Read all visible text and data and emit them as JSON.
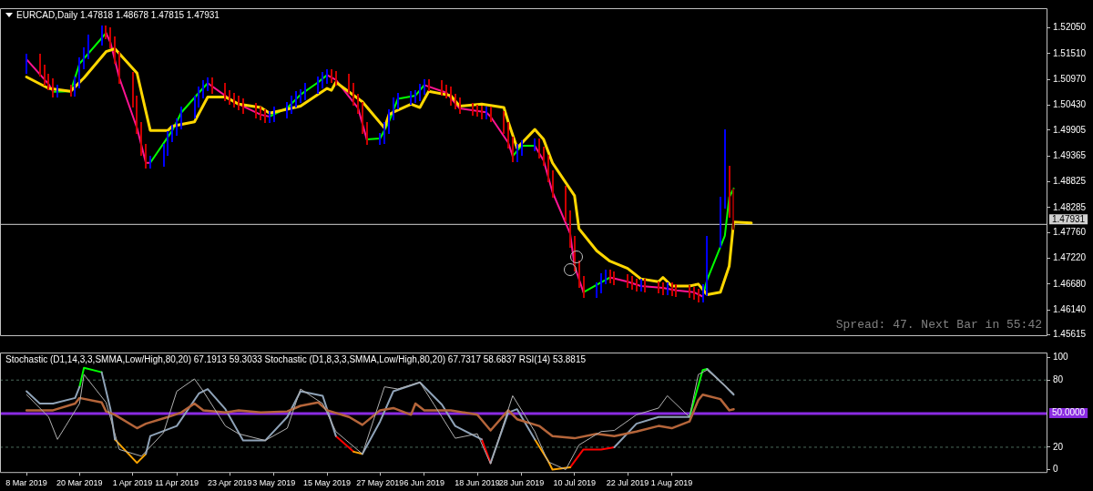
{
  "chart_data": [
    {
      "type": "candlestick",
      "title": "EURCAD,Daily 1.47818 1.48678 1.47815 1.47931",
      "annotations": [
        "Spread: 47. Next Bar in 55:42"
      ],
      "xlim": [
        "2019-03-02",
        "2019-10-25"
      ],
      "ylim": [
        1.4559,
        1.5246
      ],
      "yticks": [
        {
          "value": 1.5205,
          "label": "1.52050"
        },
        {
          "value": 1.5151,
          "label": "1.51510"
        },
        {
          "value": 1.5097,
          "label": "1.50970"
        },
        {
          "value": 1.5043,
          "label": "1.50430"
        },
        {
          "value": 1.49905,
          "label": "1.49905"
        },
        {
          "value": 1.49365,
          "label": "1.49365"
        },
        {
          "value": 1.48825,
          "label": "1.48825"
        },
        {
          "value": 1.48285,
          "label": "1.48285"
        },
        {
          "value": 1.4776,
          "label": "1.47760"
        },
        {
          "value": 1.4722,
          "label": "1.47220"
        },
        {
          "value": 1.4668,
          "label": "1.46680"
        },
        {
          "value": 1.4614,
          "label": "1.46140"
        },
        {
          "value": 1.45615,
          "label": "1.45615"
        }
      ],
      "tick_labels": "y",
      "ref_lines": [
        {
          "axis": "y",
          "value": 1.47931,
          "label": "1.47931",
          "color": "#d0d0d0"
        }
      ],
      "series": [
        {
          "type": "line",
          "color": "#ffd700",
          "x": [
            "2019-03-08",
            "2019-03-13",
            "2019-03-18",
            "2019-03-21",
            "2019-03-26",
            "2019-03-28",
            "2019-04-02",
            "2019-04-05",
            "2019-04-09",
            "2019-04-10",
            "2019-04-15",
            "2019-04-18",
            "2019-04-22",
            "2019-04-25",
            "2019-04-30",
            "2019-05-02",
            "2019-05-09",
            "2019-05-15",
            "2019-05-16",
            "2019-05-17",
            "2019-05-23",
            "2019-05-28",
            "2019-05-29",
            "2019-05-30",
            "2019-06-03",
            "2019-06-05",
            "2019-06-07",
            "2019-06-12",
            "2019-06-14",
            "2019-06-19",
            "2019-06-24",
            "2019-06-25",
            "2019-06-27",
            "2019-07-01",
            "2019-07-03",
            "2019-07-05",
            "2019-07-10",
            "2019-07-11",
            "2019-07-15",
            "2019-07-18",
            "2019-07-22",
            "2019-07-25",
            "2019-07-29",
            "2019-07-30",
            "2019-08-01",
            "2019-08-05",
            "2019-08-07",
            "2019-08-09",
            "2019-08-12",
            "2019-08-14",
            "2019-08-15",
            "2019-08-19"
          ],
          "values": [
            1.5102,
            1.5078,
            1.5072,
            1.51,
            1.5155,
            1.5161,
            1.511,
            1.499,
            1.499,
            1.4999,
            1.5008,
            1.506,
            1.506,
            1.5045,
            1.5038,
            1.5026,
            1.5041,
            1.5078,
            1.5074,
            1.5091,
            1.505,
            1.4995,
            1.5023,
            1.5028,
            1.5045,
            1.5038,
            1.5072,
            1.5063,
            1.5041,
            1.5045,
            1.5038,
            1.5008,
            1.4953,
            1.4992,
            1.4971,
            1.4922,
            1.4853,
            1.4784,
            1.4738,
            1.4716,
            1.4701,
            1.4679,
            1.4673,
            1.4682,
            1.4664,
            1.4664,
            1.4668,
            1.4646,
            1.4651,
            1.4706,
            1.4798,
            1.4796
          ]
        },
        {
          "type": "line",
          "color": "#ff1493",
          "x": [
            "2019-03-08",
            "2019-03-13",
            "2019-03-14",
            "2019-03-20",
            "2019-03-26",
            "2019-03-27",
            "2019-03-29",
            "2019-04-02",
            "2019-04-04",
            "2019-04-05",
            "2019-04-12",
            "2019-04-18",
            "2019-04-23",
            "2019-04-25",
            "2019-04-30",
            "2019-05-02",
            "2019-05-09",
            "2019-05-15",
            "2019-05-17",
            "2019-05-22",
            "2019-05-24",
            "2019-05-29",
            "2019-06-06",
            "2019-06-11",
            "2019-06-14",
            "2019-06-20",
            "2019-06-21",
            "2019-06-25",
            "2019-06-26",
            "2019-06-28",
            "2019-07-01",
            "2019-07-03",
            "2019-07-05",
            "2019-07-09",
            "2019-07-10",
            "2019-07-12",
            "2019-07-15",
            "2019-07-18",
            "2019-07-22",
            "2019-07-25",
            "2019-07-30",
            "2019-08-02",
            "2019-08-06",
            "2019-08-08"
          ],
          "values": [
            1.5139,
            1.5087,
            1.5071,
            null,
            1.5194,
            1.5174,
            1.51,
            1.4995,
            1.4922,
            1.4922,
            null,
            1.5089,
            1.5056,
            1.5045,
            1.5023,
            1.5019,
            null,
            1.5106,
            1.5096,
            1.5037,
            1.4971,
            null,
            1.5085,
            1.5069,
            1.5036,
            1.5028,
            1.5019,
            1.4964,
            1.4936,
            null,
            1.4958,
            1.4927,
            1.4861,
            1.4774,
            1.4706,
            1.4651,
            null,
            1.4682,
            1.4673,
            1.4664,
            1.466,
            1.4655,
            1.4651,
            1.4642
          ]
        },
        {
          "type": "line",
          "color": "#00ff00",
          "x": [
            "2019-03-14",
            "2019-03-18",
            "2019-03-20",
            "2019-03-26",
            "2019-04-01",
            "2019-04-05",
            "2019-04-10",
            "2019-04-12",
            "2019-04-16",
            "2019-04-18",
            "2019-04-25",
            "2019-05-02",
            "2019-05-06",
            "2019-05-09",
            "2019-05-13",
            "2019-05-15",
            "2019-05-20",
            "2019-05-24",
            "2019-05-27",
            "2019-05-29",
            "2019-05-31",
            "2019-06-04",
            "2019-06-06",
            "2019-06-18",
            "2019-06-26",
            "2019-06-28",
            "2019-07-01",
            "2019-07-08",
            "2019-07-12",
            "2019-07-18",
            "2019-07-30",
            "2019-08-08",
            "2019-08-09",
            "2019-08-13",
            "2019-08-14",
            "2019-08-15"
          ],
          "values": [
            1.5071,
            1.5072,
            1.513,
            1.5194,
            null,
            1.4922,
            1.499,
            1.5027,
            1.5069,
            1.5089,
            null,
            1.5019,
            1.5037,
            1.5065,
            1.5091,
            1.5106,
            null,
            1.4971,
            1.4973,
            1.5008,
            1.5056,
            1.5063,
            1.5085,
            null,
            1.4936,
            1.4958,
            1.4958,
            null,
            1.4651,
            1.4682,
            null,
            1.4642,
            1.4677,
            1.4769,
            1.485,
            1.4868
          ]
        },
        {
          "x": [
            "2019-03-08",
            "2019-03-11",
            "2019-03-12",
            "2019-03-13",
            "2019-03-14",
            "2019-03-15",
            "2019-03-18",
            "2019-03-19",
            "2019-03-20",
            "2019-03-21",
            "2019-03-22",
            "2019-03-25",
            "2019-03-26",
            "2019-03-27",
            "2019-03-28",
            "2019-03-29",
            "2019-04-01",
            "2019-04-02",
            "2019-04-03",
            "2019-04-04",
            "2019-04-05",
            "2019-04-08",
            "2019-04-09",
            "2019-04-10",
            "2019-04-11",
            "2019-04-12",
            "2019-04-15",
            "2019-04-16",
            "2019-04-17",
            "2019-04-18",
            "2019-04-19",
            "2019-04-22",
            "2019-04-23",
            "2019-04-24",
            "2019-04-25",
            "2019-04-26",
            "2019-04-29",
            "2019-04-30",
            "2019-05-01",
            "2019-05-02",
            "2019-05-03",
            "2019-05-06",
            "2019-05-07",
            "2019-05-08",
            "2019-05-09",
            "2019-05-10",
            "2019-05-13",
            "2019-05-14",
            "2019-05-15",
            "2019-05-16",
            "2019-05-17",
            "2019-05-20",
            "2019-05-21",
            "2019-05-22",
            "2019-05-23",
            "2019-05-24",
            "2019-05-27",
            "2019-05-28",
            "2019-05-29",
            "2019-05-30",
            "2019-05-31",
            "2019-06-03",
            "2019-06-04",
            "2019-06-05",
            "2019-06-06",
            "2019-06-07",
            "2019-06-10",
            "2019-06-11",
            "2019-06-12",
            "2019-06-13",
            "2019-06-14",
            "2019-06-17",
            "2019-06-18",
            "2019-06-19",
            "2019-06-20",
            "2019-06-21",
            "2019-06-24",
            "2019-06-25",
            "2019-06-26",
            "2019-06-27",
            "2019-06-28",
            "2019-07-01",
            "2019-07-02",
            "2019-07-03",
            "2019-07-04",
            "2019-07-05",
            "2019-07-08",
            "2019-07-09",
            "2019-07-10",
            "2019-07-11",
            "2019-07-12",
            "2019-07-15",
            "2019-07-16",
            "2019-07-17",
            "2019-07-18",
            "2019-07-19",
            "2019-07-22",
            "2019-07-23",
            "2019-07-24",
            "2019-07-25",
            "2019-07-26",
            "2019-07-29",
            "2019-07-30",
            "2019-07-31",
            "2019-08-01",
            "2019-08-02",
            "2019-08-05",
            "2019-08-06",
            "2019-08-07",
            "2019-08-08",
            "2019-08-09",
            "2019-08-12",
            "2019-08-13",
            "2019-08-14",
            "2019-08-15"
          ],
          "ohlc": [
            [
              1.512,
              1.5151,
              1.5108,
              1.5139
            ],
            [
              1.5139,
              1.5151,
              1.5103,
              1.5115
            ],
            [
              1.5115,
              1.5127,
              1.5084,
              1.5096
            ],
            [
              1.5096,
              1.5108,
              1.5075,
              1.5087
            ],
            [
              1.5087,
              1.5099,
              1.5059,
              1.5071
            ],
            [
              1.5071,
              1.5086,
              1.5059,
              1.5074
            ],
            [
              1.5074,
              1.5086,
              1.506,
              1.5072
            ],
            [
              1.5072,
              1.5103,
              1.506,
              1.5091
            ],
            [
              1.5091,
              1.5142,
              1.5079,
              1.513
            ],
            [
              1.513,
              1.5164,
              1.5118,
              1.5152
            ],
            [
              1.5152,
              1.5191,
              1.514,
              1.5179
            ],
            [
              1.5179,
              1.521,
              1.5167,
              1.5198
            ],
            [
              1.5198,
              1.521,
              1.5182,
              1.5194
            ],
            [
              1.5194,
              1.5206,
              1.5162,
              1.5174
            ],
            [
              1.5174,
              1.5186,
              1.513,
              1.5142
            ],
            [
              1.5142,
              1.5154,
              1.5088,
              1.51
            ],
            [
              1.51,
              1.5112,
              1.5038,
              1.505
            ],
            [
              1.505,
              1.5062,
              1.4983,
              1.4995
            ],
            [
              1.4995,
              1.5007,
              1.4937,
              1.4949
            ],
            [
              1.4949,
              1.4961,
              1.491,
              1.4922
            ],
            [
              1.4922,
              1.4937,
              1.491,
              1.4925
            ],
            [
              1.4925,
              1.4961,
              1.4913,
              1.4949
            ],
            [
              1.4949,
              1.4989,
              1.4937,
              1.4977
            ],
            [
              1.4977,
              1.5002,
              1.4965,
              1.499
            ],
            [
              1.499,
              1.5016,
              1.4978,
              1.5004
            ],
            [
              1.5004,
              1.5039,
              1.4992,
              1.5027
            ],
            [
              1.5027,
              1.5062,
              1.5015,
              1.505
            ],
            [
              1.505,
              1.5081,
              1.5038,
              1.5069
            ],
            [
              1.5069,
              1.5096,
              1.5057,
              1.5084
            ],
            [
              1.5084,
              1.5101,
              1.5072,
              1.5089
            ],
            [
              1.5089,
              1.5101,
              1.5066,
              1.5078
            ],
            [
              1.5078,
              1.509,
              1.5051,
              1.5063
            ],
            [
              1.5063,
              1.5075,
              1.5044,
              1.5056
            ],
            [
              1.5056,
              1.5068,
              1.5038,
              1.505
            ],
            [
              1.505,
              1.5062,
              1.5033,
              1.5045
            ],
            [
              1.5045,
              1.5057,
              1.5024,
              1.5036
            ],
            [
              1.5036,
              1.5048,
              1.5016,
              1.5028
            ],
            [
              1.5028,
              1.504,
              1.5011,
              1.5023
            ],
            [
              1.5023,
              1.5035,
              1.5005,
              1.5017
            ],
            [
              1.5017,
              1.5031,
              1.5005,
              1.5019
            ],
            [
              1.5019,
              1.504,
              1.5007,
              1.5028
            ],
            [
              1.5028,
              1.5049,
              1.5016,
              1.5037
            ],
            [
              1.5037,
              1.5062,
              1.5025,
              1.505
            ],
            [
              1.505,
              1.5072,
              1.5038,
              1.506
            ],
            [
              1.506,
              1.5077,
              1.5048,
              1.5065
            ],
            [
              1.5065,
              1.509,
              1.5053,
              1.5078
            ],
            [
              1.5078,
              1.5103,
              1.5066,
              1.5091
            ],
            [
              1.5091,
              1.5112,
              1.5079,
              1.51
            ],
            [
              1.51,
              1.5118,
              1.5088,
              1.5106
            ],
            [
              1.5106,
              1.5118,
              1.509,
              1.5102
            ],
            [
              1.5102,
              1.5114,
              1.5084,
              1.5096
            ],
            [
              1.5096,
              1.5108,
              1.5066,
              1.5078
            ],
            [
              1.5078,
              1.509,
              1.5042,
              1.5054
            ],
            [
              1.5054,
              1.5066,
              1.5025,
              1.5037
            ],
            [
              1.5037,
              1.5049,
              1.4983,
              1.4995
            ],
            [
              1.4995,
              1.5007,
              1.4959,
              1.4971
            ],
            [
              1.4971,
              1.4985,
              1.4959,
              1.4973
            ],
            [
              1.4973,
              1.5007,
              1.4961,
              1.4995
            ],
            [
              1.4995,
              1.5035,
              1.4983,
              1.5023
            ],
            [
              1.5023,
              1.5059,
              1.5011,
              1.5047
            ],
            [
              1.5047,
              1.5068,
              1.5035,
              1.5056
            ],
            [
              1.5056,
              1.5072,
              1.5044,
              1.506
            ],
            [
              1.506,
              1.5075,
              1.5048,
              1.5063
            ],
            [
              1.5063,
              1.5088,
              1.5051,
              1.5076
            ],
            [
              1.5076,
              1.5097,
              1.5064,
              1.5085
            ],
            [
              1.5085,
              1.5097,
              1.5072,
              1.5084
            ],
            [
              1.5084,
              1.5096,
              1.5062,
              1.5074
            ],
            [
              1.5074,
              1.5086,
              1.5057,
              1.5069
            ],
            [
              1.5069,
              1.5081,
              1.5042,
              1.5054
            ],
            [
              1.5054,
              1.5066,
              1.5035,
              1.5047
            ],
            [
              1.5047,
              1.5059,
              1.5024,
              1.5036
            ],
            [
              1.5036,
              1.5048,
              1.502,
              1.5032
            ],
            [
              1.5032,
              1.5044,
              1.5018,
              1.503
            ],
            [
              1.503,
              1.5042,
              1.5014,
              1.5026
            ],
            [
              1.5026,
              1.504,
              1.5014,
              1.5028
            ],
            [
              1.5028,
              1.504,
              1.5007,
              1.5019
            ],
            [
              1.5019,
              1.5031,
              1.4983,
              1.4995
            ],
            [
              1.4995,
              1.5007,
              1.4952,
              1.4964
            ],
            [
              1.4964,
              1.4976,
              1.4924,
              1.4936
            ],
            [
              1.4936,
              1.4961,
              1.4924,
              1.4949
            ],
            [
              1.4949,
              1.497,
              1.4937,
              1.4958
            ],
            [
              1.4958,
              1.4974,
              1.4946,
              1.4962
            ],
            [
              1.4962,
              1.4974,
              1.4932,
              1.4944
            ],
            [
              1.4944,
              1.4956,
              1.4915,
              1.4927
            ],
            [
              1.4927,
              1.4939,
              1.4882,
              1.4894
            ],
            [
              1.4894,
              1.4906,
              1.4849,
              1.4861
            ],
            [
              1.4861,
              1.4873,
              1.4799,
              1.4811
            ],
            [
              1.4811,
              1.4823,
              1.4744,
              1.4756
            ],
            [
              1.4756,
              1.4768,
              1.4694,
              1.4706
            ],
            [
              1.4706,
              1.4718,
              1.4661,
              1.4673
            ],
            [
              1.4673,
              1.4685,
              1.4639,
              1.4651
            ],
            [
              1.4651,
              1.4672,
              1.4639,
              1.466
            ],
            [
              1.466,
              1.4691,
              1.4648,
              1.4679
            ],
            [
              1.4679,
              1.4698,
              1.4667,
              1.4686
            ],
            [
              1.4686,
              1.4698,
              1.467,
              1.4682
            ],
            [
              1.4682,
              1.4694,
              1.4665,
              1.4677
            ],
            [
              1.4677,
              1.4689,
              1.4661,
              1.4673
            ],
            [
              1.4673,
              1.4685,
              1.4656,
              1.4668
            ],
            [
              1.4668,
              1.468,
              1.4652,
              1.4664
            ],
            [
              1.4664,
              1.4679,
              1.4652,
              1.4667
            ],
            [
              1.4667,
              1.4679,
              1.465,
              1.4662
            ],
            [
              1.4662,
              1.4674,
              1.4648,
              1.466
            ],
            [
              1.466,
              1.4672,
              1.4645,
              1.4657
            ],
            [
              1.4657,
              1.4671,
              1.4645,
              1.4659
            ],
            [
              1.4659,
              1.4671,
              1.4643,
              1.4655
            ],
            [
              1.4655,
              1.4667,
              1.4641,
              1.4653
            ],
            [
              1.4653,
              1.4665,
              1.4639,
              1.4651
            ],
            [
              1.4651,
              1.4663,
              1.4635,
              1.4647
            ],
            [
              1.4647,
              1.4659,
              1.463,
              1.4642
            ],
            [
              1.4642,
              1.4667,
              1.463,
              1.4655
            ],
            [
              1.4655,
              1.4768,
              1.4643,
              1.4756
            ],
            [
              1.4756,
              1.4851,
              1.4744,
              1.4839
            ],
            [
              1.4839,
              1.4992,
              1.4827,
              1.4903
            ],
            [
              1.4903,
              1.4915,
              1.4808,
              1.482
            ],
            [
              1.47818,
              1.48678,
              1.47815,
              1.47931
            ]
          ],
          "colors": [
            "#0000ff",
            "#cc0000",
            "#cc0000",
            "#cc0000",
            "#cc0000",
            "#0000ff",
            "#cc0000",
            "#0000ff",
            "#0000ff",
            "#0000ff",
            "#0000ff",
            "#0000ff",
            "#cc0000",
            "#cc0000",
            "#cc0000",
            "#cc0000",
            "#cc0000",
            "#cc0000",
            "#cc0000",
            "#cc0000",
            "#0000ff",
            "#0000ff",
            "#0000ff",
            "#0000ff",
            "#0000ff",
            "#0000ff",
            "#0000ff",
            "#0000ff",
            "#0000ff",
            "#0000ff",
            "#cc0000",
            "#cc0000",
            "#cc0000",
            "#cc0000",
            "#cc0000",
            "#cc0000",
            "#cc0000",
            "#cc0000",
            "#cc0000",
            "#0000ff",
            "#0000ff",
            "#0000ff",
            "#0000ff",
            "#0000ff",
            "#0000ff",
            "#0000ff",
            "#0000ff",
            "#0000ff",
            "#0000ff",
            "#cc0000",
            "#cc0000",
            "#cc0000",
            "#cc0000",
            "#cc0000",
            "#cc0000",
            "#cc0000",
            "#0000ff",
            "#0000ff",
            "#0000ff",
            "#0000ff",
            "#0000ff",
            "#0000ff",
            "#0000ff",
            "#0000ff",
            "#0000ff",
            "#cc0000",
            "#cc0000",
            "#cc0000",
            "#cc0000",
            "#cc0000",
            "#cc0000",
            "#cc0000",
            "#cc0000",
            "#cc0000",
            "#0000ff",
            "#cc0000",
            "#cc0000",
            "#cc0000",
            "#cc0000",
            "#0000ff",
            "#0000ff",
            "#0000ff",
            "#cc0000",
            "#cc0000",
            "#cc0000",
            "#cc0000",
            "#cc0000",
            "#cc0000",
            "#cc0000",
            "#cc0000",
            "#cc0000",
            "#0000ff",
            "#0000ff",
            "#0000ff",
            "#cc0000",
            "#cc0000",
            "#cc0000",
            "#cc0000",
            "#cc0000",
            "#0000ff",
            "#cc0000",
            "#cc0000",
            "#cc0000",
            "#0000ff",
            "#cc0000",
            "#cc0000",
            "#cc0000",
            "#cc0000",
            "#cc0000",
            "#0000ff",
            "#0000ff",
            "#0000ff",
            "#0000ff",
            "#cc0000",
            "#8b0000"
          ]
        }
      ]
    },
    {
      "type": "line",
      "title": "Stochastic (D1,14,3,3,SMMA,Low/High,80,20) 67.1913 59.3033  Stochastic (D1,8,3,3,SMMA,Low/High,80,20) 67.7317 58.6837  RSI(14) 53.8815",
      "xlim": [
        "2019-03-02",
        "2019-10-25"
      ],
      "xticks": [
        {
          "value": "2019-03-08",
          "label": "8 Mar 2019"
        },
        {
          "value": "2019-03-20",
          "label": "20 Mar 2019"
        },
        {
          "value": "2019-04-01",
          "label": "1 Apr 2019"
        },
        {
          "value": "2019-04-11",
          "label": "11 Apr 2019"
        },
        {
          "value": "2019-04-23",
          "label": "23 Apr 2019"
        },
        {
          "value": "2019-05-03",
          "label": "3 May 2019"
        },
        {
          "value": "2019-05-15",
          "label": "15 May 2019"
        },
        {
          "value": "2019-05-27",
          "label": "27 May 2019"
        },
        {
          "value": "2019-06-06",
          "label": "6 Jun 2019"
        },
        {
          "value": "2019-06-18",
          "label": "18 Jun 2019"
        },
        {
          "value": "2019-06-28",
          "label": "28 Jun 2019"
        },
        {
          "value": "2019-07-10",
          "label": "10 Jul 2019"
        },
        {
          "value": "2019-07-22",
          "label": "22 Jul 2019"
        },
        {
          "value": "2019-08-01",
          "label": "1 Aug 2019"
        }
      ],
      "ylim": [
        -3,
        104.6
      ],
      "yticks": [
        0,
        20,
        80,
        100
      ],
      "ref_lines": [
        {
          "axis": "y",
          "value": 80,
          "color": "#4a6a5a",
          "line_style": "dashed"
        },
        {
          "axis": "y",
          "value": 20,
          "color": "#4a6a5a",
          "line_style": "dashed"
        },
        {
          "axis": "y",
          "value": 50,
          "label": "50.0000",
          "color": "#8a2be2"
        }
      ],
      "series": [
        {
          "color": "#b0b0b0",
          "x": [
            "2019-03-08",
            "2019-03-13",
            "2019-03-15",
            "2019-03-20",
            "2019-03-21",
            "2019-03-26",
            "2019-03-29",
            "2019-04-03",
            "2019-04-08",
            "2019-04-11",
            "2019-04-15",
            "2019-04-17",
            "2019-04-22",
            "2019-04-25",
            "2019-05-01",
            "2019-05-06",
            "2019-05-09",
            "2019-05-14",
            "2019-05-17",
            "2019-05-23",
            "2019-05-28",
            "2019-05-31",
            "2019-06-05",
            "2019-06-10",
            "2019-06-13",
            "2019-06-18",
            "2019-06-21",
            "2019-06-26",
            "2019-07-01",
            "2019-07-04",
            "2019-07-08",
            "2019-07-11",
            "2019-07-16",
            "2019-07-19",
            "2019-07-24",
            "2019-07-29",
            "2019-07-31",
            "2019-08-05",
            "2019-08-07",
            "2019-08-09",
            "2019-08-15"
          ],
          "values": [
            67,
            47,
            27,
            59,
            85,
            60,
            18,
            12,
            33,
            70,
            81,
            70,
            39,
            32,
            26,
            37,
            72,
            59,
            34,
            14,
            74,
            72,
            78,
            47,
            28,
            32,
            5,
            66,
            34,
            7,
            0,
            22,
            34,
            35,
            49,
            55,
            66,
            47,
            85,
            89,
            68
          ]
        },
        {
          "color": "#b5653a",
          "x": [
            "2019-03-08",
            "2019-03-14",
            "2019-03-19",
            "2019-03-20",
            "2019-03-25",
            "2019-03-26",
            "2019-03-28",
            "2019-04-02",
            "2019-04-04",
            "2019-04-09",
            "2019-04-12",
            "2019-04-15",
            "2019-04-17",
            "2019-04-22",
            "2019-04-25",
            "2019-04-30",
            "2019-05-06",
            "2019-05-09",
            "2019-05-13",
            "2019-05-15",
            "2019-05-20",
            "2019-05-23",
            "2019-05-27",
            "2019-05-30",
            "2019-06-03",
            "2019-06-04",
            "2019-06-06",
            "2019-06-12",
            "2019-06-18",
            "2019-06-21",
            "2019-06-25",
            "2019-06-27",
            "2019-07-02",
            "2019-07-05",
            "2019-07-10",
            "2019-07-15",
            "2019-07-19",
            "2019-07-24",
            "2019-07-29",
            "2019-08-01",
            "2019-08-05",
            "2019-08-07",
            "2019-08-08",
            "2019-08-12",
            "2019-08-14",
            "2019-08-15"
          ],
          "values": [
            53,
            53,
            59,
            64,
            60,
            52,
            49,
            37,
            41,
            47,
            51,
            59,
            53,
            51,
            53,
            51,
            52,
            57,
            60,
            53,
            47,
            40,
            53,
            55,
            49,
            59,
            53,
            53,
            49,
            35,
            53,
            45,
            39,
            30,
            28,
            32,
            30,
            34,
            39,
            37,
            43,
            62,
            67,
            63,
            53,
            54
          ]
        },
        {
          "color": "#8fa3b8",
          "x": [
            "2019-03-08",
            "2019-03-11",
            "2019-03-14",
            "2019-03-19",
            "2019-03-20",
            "2019-03-22",
            "2019-03-25",
            "2019-03-27",
            "2019-03-28",
            "2019-04-03",
            "2019-04-04",
            "2019-04-05",
            "2019-04-11",
            "2019-04-16",
            "2019-04-18",
            "2019-04-22",
            "2019-04-26",
            "2019-05-01",
            "2019-05-06",
            "2019-05-09",
            "2019-05-14",
            "2019-05-17",
            "2019-05-22",
            "2019-05-23",
            "2019-05-27",
            "2019-05-30",
            "2019-06-05",
            "2019-06-10",
            "2019-06-13",
            "2019-06-19",
            "2019-06-20",
            "2019-06-21",
            "2019-06-25",
            "2019-06-27",
            "2019-07-01",
            "2019-07-15",
            "2019-07-19",
            "2019-07-24",
            "2019-07-29",
            "2019-08-01",
            "2019-08-05",
            "2019-08-07",
            "2019-08-09",
            "2019-08-13",
            "2019-08-15"
          ],
          "values": [
            70,
            59,
            59,
            64,
            74,
            null,
            87,
            54,
            27,
            null,
            14,
            30,
            39,
            68,
            72,
            54,
            26,
            26,
            47,
            70,
            66,
            30,
            null,
            14,
            43,
            70,
            78,
            58,
            39,
            27,
            null,
            6,
            51,
            54,
            27,
            null,
            20,
            41,
            47,
            47,
            47,
            null,
            90,
            75,
            67
          ]
        },
        {
          "color": "#00ff00",
          "x": [
            "2019-03-20",
            "2019-03-21",
            "2019-03-25",
            "2019-04-15",
            "2019-08-05",
            "2019-08-08",
            "2019-08-09"
          ],
          "values": [
            74,
            91,
            87,
            null,
            47,
            89,
            90
          ]
        },
        {
          "color": "#ffa500",
          "x": [
            "2019-03-28",
            "2019-04-02",
            "2019-04-04",
            "2019-05-01",
            "2019-05-21",
            "2019-05-23",
            "2019-06-15",
            "2019-07-01",
            "2019-07-04",
            "2019-07-05",
            "2019-07-09"
          ],
          "values": [
            27,
            6,
            14,
            null,
            16,
            14,
            null,
            27,
            8,
            0,
            2
          ]
        },
        {
          "color": "#ff0000",
          "x": [
            "2019-05-17",
            "2019-05-21",
            "2019-06-01",
            "2019-06-19",
            "2019-06-21",
            "2019-07-01",
            "2019-07-09",
            "2019-07-12",
            "2019-07-16",
            "2019-07-19"
          ],
          "values": [
            30,
            16,
            null,
            27,
            6,
            null,
            2,
            18,
            18,
            20
          ]
        }
      ]
    }
  ]
}
